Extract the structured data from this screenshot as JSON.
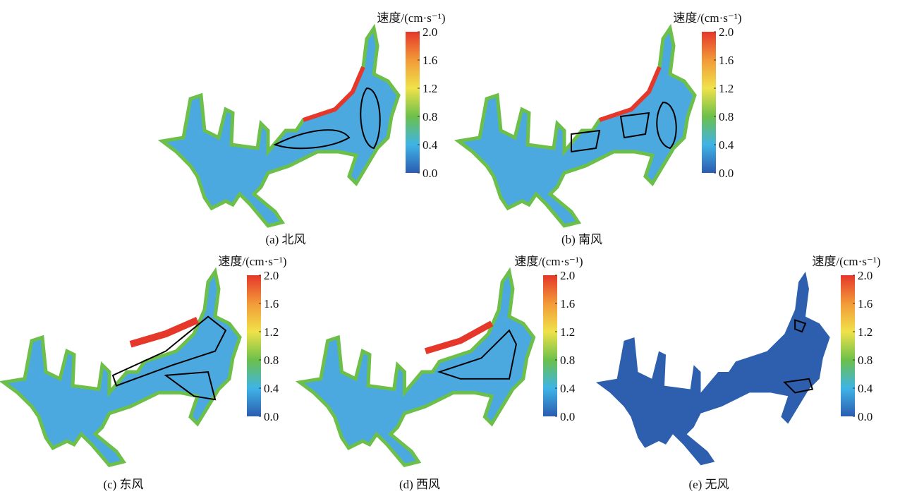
{
  "colorbar": {
    "title": "速度/(cm·s⁻¹)",
    "lim": [
      0,
      2
    ],
    "ticks": [
      {
        "value": 0,
        "label": "0.0"
      },
      {
        "value": 0.4,
        "label": "0.4"
      },
      {
        "value": 0.8,
        "label": "0.8"
      },
      {
        "value": 1.2,
        "label": "1.2"
      },
      {
        "value": 1.6,
        "label": "1.6"
      },
      {
        "value": 2,
        "label": "2.0"
      }
    ],
    "colors": [
      "#2b5cb0",
      "#3fb4e6",
      "#6cc04a",
      "#f0e24a",
      "#f29a38",
      "#e5372a"
    ]
  },
  "panels": [
    {
      "caption": "(a) 北风"
    },
    {
      "caption": "(b) 南风"
    },
    {
      "caption": "(c) 东风"
    },
    {
      "caption": "(d) 西风"
    },
    {
      "caption": "(e) 无风"
    }
  ]
}
